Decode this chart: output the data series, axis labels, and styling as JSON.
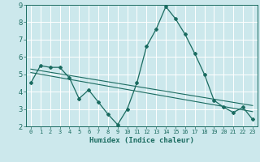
{
  "title": "",
  "xlabel": "Humidex (Indice chaleur)",
  "ylabel": "",
  "bg_color": "#cce8ec",
  "grid_color": "#ffffff",
  "line_color": "#1a6b60",
  "xlim": [
    -0.5,
    23.5
  ],
  "ylim": [
    2,
    9
  ],
  "xticks": [
    0,
    1,
    2,
    3,
    4,
    5,
    6,
    7,
    8,
    9,
    10,
    11,
    12,
    13,
    14,
    15,
    16,
    17,
    18,
    19,
    20,
    21,
    22,
    23
  ],
  "yticks": [
    2,
    3,
    4,
    5,
    6,
    7,
    8,
    9
  ],
  "series1_x": [
    0,
    1,
    2,
    3,
    4,
    5,
    6,
    7,
    8,
    9,
    10,
    11,
    12,
    13,
    14,
    15,
    16,
    17,
    18,
    19,
    20,
    21,
    22,
    23
  ],
  "series1_y": [
    4.5,
    5.5,
    5.4,
    5.4,
    4.8,
    3.6,
    4.1,
    3.4,
    2.7,
    2.1,
    3.0,
    4.5,
    6.6,
    7.6,
    8.9,
    8.2,
    7.3,
    6.2,
    5.0,
    3.5,
    3.1,
    2.8,
    3.1,
    2.4
  ],
  "series2_x": [
    0,
    23
  ],
  "series2_y": [
    5.3,
    3.2
  ],
  "series3_x": [
    0,
    23
  ],
  "series3_y": [
    5.1,
    2.85
  ]
}
